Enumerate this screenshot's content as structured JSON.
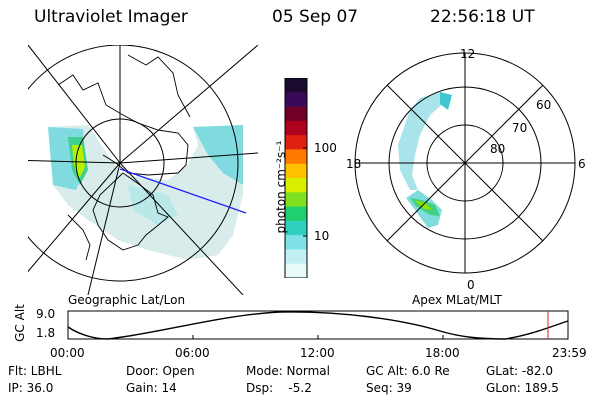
{
  "header": {
    "instrument": "Ultraviolet Imager",
    "date": "05 Sep 07",
    "time": "22:56:18 UT"
  },
  "left_panel": {
    "label": "Geographic Lat/Lon"
  },
  "right_panel": {
    "label": "Apex MLat/MLT",
    "mlt_labels": {
      "top": "12",
      "left": "18",
      "right": "6",
      "bottom": "0"
    },
    "lat_labels": [
      "60",
      "70",
      "80"
    ]
  },
  "colorbar": {
    "unit_label": "photon cm⁻²s⁻¹",
    "ticks": [
      "100",
      "10"
    ],
    "colors": [
      "#1a0a30",
      "#3a0a5a",
      "#700028",
      "#b00020",
      "#e02010",
      "#ff7a00",
      "#ffc000",
      "#d8f000",
      "#80e020",
      "#20d070",
      "#30d0c0",
      "#80e0e8",
      "#c0f0f4",
      "#e8fafa"
    ]
  },
  "altitude_plot": {
    "ylabel": "GC Alt",
    "yticks": [
      "9.0",
      "1.8"
    ],
    "xticks": [
      "00:00",
      "06:00",
      "12:00",
      "18:00",
      "23:59"
    ]
  },
  "footer": {
    "flt": "Flt: LBHL",
    "ip": "IP: 36.0",
    "door": "Door: Open",
    "gain": "Gain: 14",
    "mode": "Mode: Normal",
    "dsp": "Dsp:    -5.2",
    "gc_alt": "GC Alt: 6.0 Re",
    "seq": "Seq: 39",
    "glat": "GLat: -82.0",
    "glon": "GLon: 189.5"
  }
}
